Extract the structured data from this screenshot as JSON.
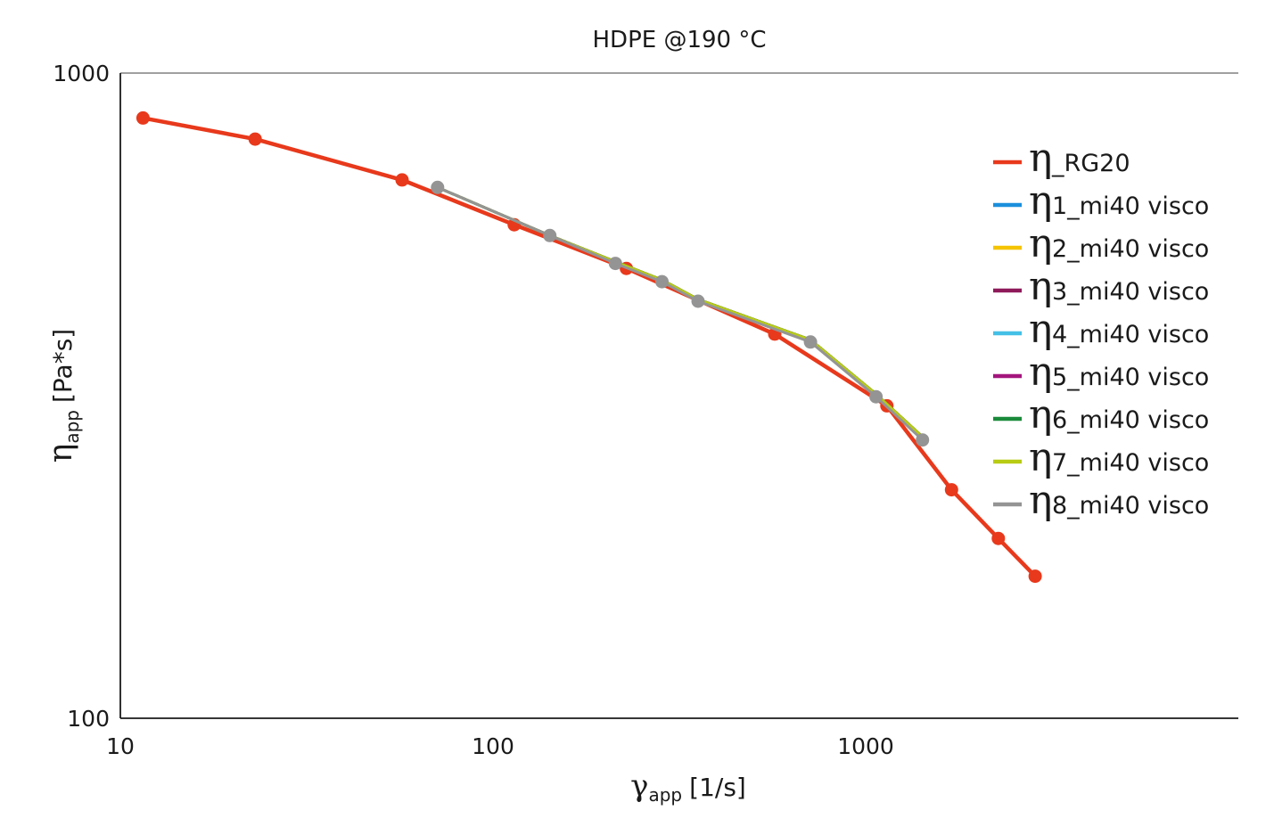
{
  "chart_data": {
    "type": "line",
    "title": "HDPE @190 °C",
    "xlabel": {
      "symbol": "γ",
      "subscript": "app",
      "unit": "[1/s]"
    },
    "ylabel": {
      "symbol": "η",
      "subscript": "app",
      "unit": "[Pa*s]"
    },
    "xscale": "log",
    "yscale": "log",
    "xlim": [
      10,
      10000
    ],
    "ylim": [
      100,
      1000
    ],
    "x_ticks": [
      "10",
      "100",
      "1000"
    ],
    "y_ticks": [
      "100",
      "1000"
    ],
    "grid": false,
    "legend_position": "right",
    "series": [
      {
        "name": "_RG20",
        "color": "#e8391c",
        "marker": true,
        "x": [
          11.5,
          23,
          57,
          114,
          228,
          570,
          1140,
          1700,
          2270,
          2850
        ],
        "y": [
          852,
          790,
          683,
          582,
          498,
          394,
          305,
          226,
          190,
          166
        ]
      },
      {
        "name": "1_mi40 visco",
        "color": "#1a8fdc",
        "marker": false,
        "x": [
          71,
          142,
          213,
          284,
          355,
          711,
          1066,
          1420
        ],
        "y": [
          665,
          560,
          510,
          478,
          446,
          386,
          318,
          273
        ]
      },
      {
        "name": "2_mi40 visco",
        "color": "#f5c400",
        "marker": false,
        "x": [
          71,
          142,
          213,
          284,
          355,
          711,
          1066,
          1420
        ],
        "y": [
          665,
          560,
          510,
          478,
          446,
          386,
          318,
          273
        ]
      },
      {
        "name": "3_mi40 visco",
        "color": "#8e1a5a",
        "marker": false,
        "x": [
          71,
          142,
          213,
          284,
          355,
          711,
          1066,
          1420
        ],
        "y": [
          665,
          560,
          510,
          478,
          446,
          386,
          318,
          273
        ]
      },
      {
        "name": "4_mi40 visco",
        "color": "#44c0e6",
        "marker": false,
        "x": [
          71,
          142,
          213,
          284,
          355,
          711,
          1066,
          1420
        ],
        "y": [
          665,
          560,
          510,
          478,
          446,
          386,
          318,
          273
        ]
      },
      {
        "name": "5_mi40 visco",
        "color": "#a3157c",
        "marker": false,
        "x": [
          71,
          142,
          213,
          284,
          355,
          711,
          1066,
          1420
        ],
        "y": [
          665,
          560,
          510,
          478,
          446,
          386,
          318,
          273
        ]
      },
      {
        "name": "6_mi40 visco",
        "color": "#1a8a3a",
        "marker": false,
        "x": [
          71,
          142,
          213,
          284,
          355,
          711,
          1066,
          1420
        ],
        "y": [
          665,
          560,
          510,
          478,
          446,
          386,
          318,
          273
        ]
      },
      {
        "name": "7_mi40 visco",
        "color": "#b8cc14",
        "marker": false,
        "x": [
          71,
          142,
          213,
          284,
          355,
          711,
          1066,
          1420
        ],
        "y": [
          665,
          560,
          510,
          478,
          446,
          386,
          318,
          273
        ]
      },
      {
        "name": "8_mi40 visco",
        "color": "#949494",
        "marker": true,
        "x": [
          71,
          142,
          213,
          284,
          355,
          711,
          1066,
          1420
        ],
        "y": [
          665,
          560,
          507,
          475,
          443,
          383,
          315,
          270
        ]
      }
    ]
  }
}
